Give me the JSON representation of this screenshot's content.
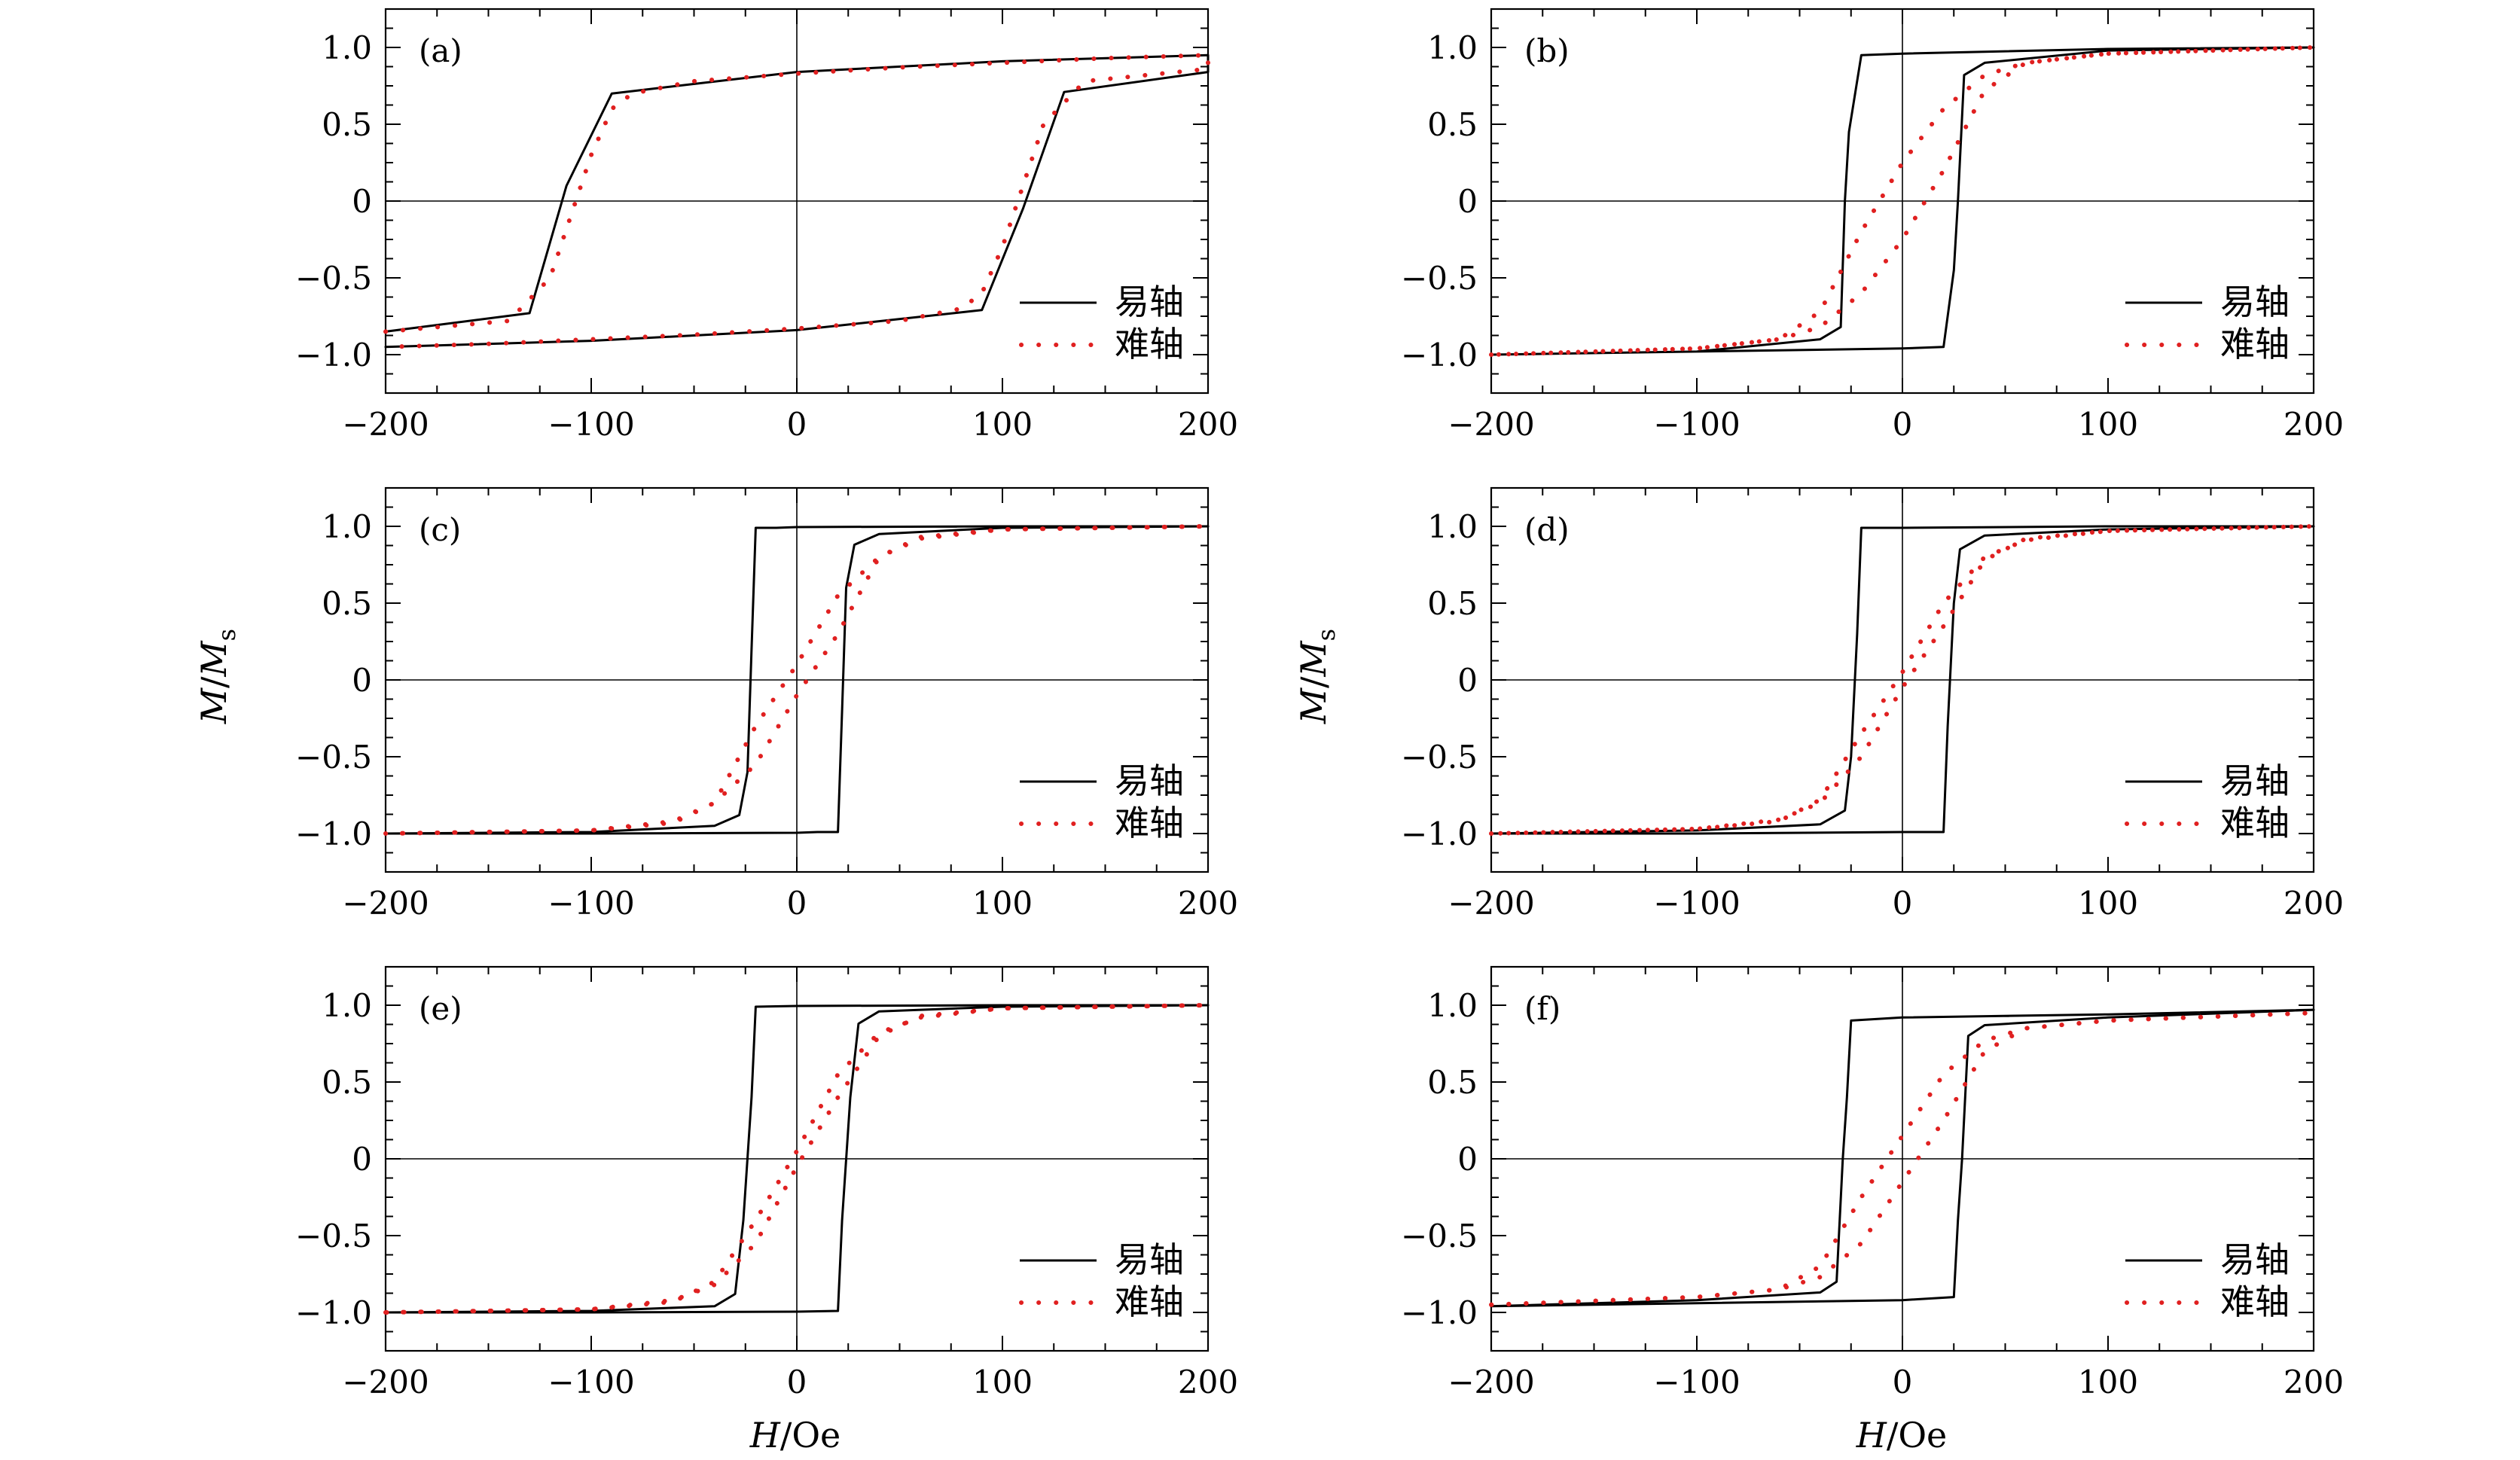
{
  "figure": {
    "ylabel": "M/Ms",
    "ylabel_parts": {
      "m": "M",
      "slash": "/",
      "m2": "M",
      "sub": "s"
    },
    "xlabel_parts": {
      "h": "H",
      "unit": "/Oe"
    },
    "legend": {
      "easy": "易轴",
      "hard": "难轴"
    },
    "colors": {
      "easy": "#000000",
      "hard": "#e02020"
    }
  },
  "chart_data": [
    {
      "type": "line",
      "panel": "(a)",
      "xlim": [
        -200,
        200
      ],
      "ylim": [
        -1.25,
        1.25
      ],
      "xticks": [
        "−200",
        "−100",
        "0",
        "100",
        "200"
      ],
      "yticks": [
        "1.0",
        "0.5",
        "0",
        "−0.5",
        "−1.0"
      ],
      "legend_position": "bottom-right",
      "series": [
        {
          "name": "易轴",
          "style": "solid",
          "x": [
            -200,
            -130,
            -112,
            -90,
            0,
            100,
            200,
            200,
            130,
            110,
            90,
            0,
            -100,
            -200
          ],
          "y": [
            -0.85,
            -0.73,
            0.1,
            0.7,
            0.84,
            0.91,
            0.95,
            0.84,
            0.71,
            -0.05,
            -0.71,
            -0.84,
            -0.91,
            -0.95
          ]
        },
        {
          "name": "难轴",
          "style": "dotted",
          "x": [
            -200,
            -140,
            -120,
            -110,
            -100,
            -90,
            -80,
            -50,
            0,
            50,
            100,
            150,
            200,
            200,
            140,
            120,
            110,
            100,
            90,
            80,
            50,
            0,
            -50,
            -100,
            -150,
            -200
          ],
          "y": [
            -0.85,
            -0.78,
            -0.5,
            -0.1,
            0.3,
            0.6,
            0.7,
            0.78,
            0.83,
            0.87,
            0.9,
            0.93,
            0.95,
            0.86,
            0.78,
            0.5,
            0.1,
            -0.3,
            -0.6,
            -0.7,
            -0.78,
            -0.83,
            -0.87,
            -0.9,
            -0.93,
            -0.95
          ]
        }
      ]
    },
    {
      "type": "line",
      "panel": "(b)",
      "xlim": [
        -200,
        200
      ],
      "ylim": [
        -1.25,
        1.25
      ],
      "xticks": [
        "−200",
        "−100",
        "0",
        "100",
        "200"
      ],
      "yticks": [
        "1.0",
        "0.5",
        "0",
        "−0.5",
        "−1.0"
      ],
      "legend_position": "bottom-right",
      "series": [
        {
          "name": "易轴",
          "style": "solid",
          "x": [
            -200,
            -100,
            -40,
            -30,
            -28,
            -26,
            -20,
            0,
            100,
            200,
            200,
            100,
            40,
            30,
            27,
            25,
            20,
            0,
            -100,
            -200
          ],
          "y": [
            -1.0,
            -0.98,
            -0.9,
            -0.82,
            0.0,
            0.45,
            0.95,
            0.96,
            0.99,
            1.0,
            1.0,
            0.98,
            0.9,
            0.82,
            0.0,
            -0.45,
            -0.95,
            -0.96,
            -0.98,
            -1.0
          ]
        },
        {
          "name": "难轴",
          "style": "dotted",
          "x": [
            -200,
            -100,
            -60,
            -40,
            -20,
            0,
            20,
            40,
            60,
            100,
            200,
            200,
            100,
            60,
            40,
            20,
            0,
            -20,
            -40,
            -60,
            -100,
            -200
          ],
          "y": [
            -1.0,
            -0.96,
            -0.9,
            -0.72,
            -0.2,
            0.25,
            0.6,
            0.82,
            0.9,
            0.96,
            1.0,
            1.0,
            0.96,
            0.9,
            0.72,
            0.2,
            -0.25,
            -0.6,
            -0.82,
            -0.9,
            -0.96,
            -1.0
          ]
        }
      ]
    },
    {
      "type": "line",
      "panel": "(c)",
      "xlim": [
        -200,
        200
      ],
      "ylim": [
        -1.25,
        1.25
      ],
      "xticks": [
        "−200",
        "−100",
        "0",
        "100",
        "200"
      ],
      "yticks": [
        "1.0",
        "0.5",
        "0",
        "−0.5",
        "−1.0"
      ],
      "legend_position": "bottom-right",
      "series": [
        {
          "name": "易轴",
          "style": "solid",
          "x": [
            -200,
            -100,
            -40,
            -28,
            -24,
            -22,
            -20,
            -10,
            0,
            100,
            200,
            200,
            100,
            40,
            28,
            24,
            22,
            20,
            10,
            0,
            -100,
            -200
          ],
          "y": [
            -1.0,
            -0.99,
            -0.95,
            -0.88,
            -0.6,
            0.2,
            0.99,
            0.99,
            0.995,
            1.0,
            1.0,
            1.0,
            0.99,
            0.95,
            0.88,
            0.6,
            -0.2,
            -0.99,
            -0.99,
            -0.995,
            -1.0,
            -1.0
          ]
        },
        {
          "name": "难轴",
          "style": "dotted",
          "x": [
            -200,
            -100,
            -60,
            -40,
            -20,
            0,
            20,
            40,
            60,
            100,
            200,
            200,
            100,
            60,
            40,
            20,
            0,
            -20,
            -40,
            -60,
            -100,
            -200
          ],
          "y": [
            -1.0,
            -0.98,
            -0.93,
            -0.8,
            -0.3,
            0.1,
            0.55,
            0.8,
            0.92,
            0.98,
            1.0,
            1.0,
            0.98,
            0.93,
            0.8,
            0.3,
            -0.1,
            -0.55,
            -0.8,
            -0.92,
            -0.98,
            -1.0
          ]
        }
      ]
    },
    {
      "type": "line",
      "panel": "(d)",
      "xlim": [
        -200,
        200
      ],
      "ylim": [
        -1.25,
        1.25
      ],
      "xticks": [
        "−200",
        "−100",
        "0",
        "100",
        "200"
      ],
      "yticks": [
        "1.0",
        "0.5",
        "0",
        "−0.5",
        "−1.0"
      ],
      "legend_position": "bottom-right",
      "series": [
        {
          "name": "易轴",
          "style": "solid",
          "x": [
            -200,
            -100,
            -40,
            -28,
            -25,
            -22,
            -20,
            0,
            100,
            200,
            200,
            100,
            40,
            28,
            25,
            22,
            20,
            0,
            -100,
            -200
          ],
          "y": [
            -1.0,
            -0.98,
            -0.94,
            -0.85,
            -0.5,
            0.3,
            0.99,
            0.99,
            1.0,
            1.0,
            1.0,
            0.98,
            0.94,
            0.85,
            0.5,
            -0.3,
            -0.99,
            -0.99,
            -1.0,
            -1.0
          ]
        },
        {
          "name": "难轴",
          "style": "dotted",
          "x": [
            -200,
            -100,
            -60,
            -40,
            -20,
            0,
            20,
            40,
            60,
            100,
            200,
            200,
            100,
            60,
            40,
            20,
            0,
            -20,
            -40,
            -60,
            -100,
            -200
          ],
          "y": [
            -1.0,
            -0.97,
            -0.92,
            -0.78,
            -0.35,
            0.05,
            0.5,
            0.8,
            0.91,
            0.97,
            1.0,
            1.0,
            0.97,
            0.92,
            0.78,
            0.35,
            -0.05,
            -0.5,
            -0.8,
            -0.91,
            -0.97,
            -1.0
          ]
        }
      ]
    },
    {
      "type": "line",
      "panel": "(e)",
      "xlim": [
        -200,
        200
      ],
      "ylim": [
        -1.25,
        1.25
      ],
      "xticks": [
        "−200",
        "−100",
        "0",
        "100",
        "200"
      ],
      "yticks": [
        "1.0",
        "0.5",
        "0",
        "−0.5",
        "−1.0"
      ],
      "legend_position": "bottom-right",
      "series": [
        {
          "name": "易轴",
          "style": "solid",
          "x": [
            -200,
            -100,
            -40,
            -30,
            -26,
            -22,
            -20,
            0,
            100,
            200,
            200,
            100,
            40,
            30,
            26,
            22,
            20,
            0,
            -100,
            -200
          ],
          "y": [
            -1.0,
            -0.99,
            -0.96,
            -0.88,
            -0.4,
            0.4,
            0.99,
            0.995,
            1.0,
            1.0,
            1.0,
            0.99,
            0.96,
            0.88,
            0.4,
            -0.4,
            -0.99,
            -0.995,
            -1.0,
            -1.0
          ]
        },
        {
          "name": "难轴",
          "style": "dotted",
          "x": [
            -200,
            -100,
            -60,
            -40,
            -20,
            0,
            20,
            40,
            60,
            100,
            200,
            200,
            100,
            60,
            40,
            20,
            0,
            -20,
            -40,
            -60,
            -100,
            -200
          ],
          "y": [
            -1.0,
            -0.98,
            -0.93,
            -0.8,
            -0.4,
            0.05,
            0.55,
            0.82,
            0.92,
            0.98,
            1.0,
            1.0,
            0.98,
            0.93,
            0.8,
            0.4,
            -0.05,
            -0.55,
            -0.82,
            -0.92,
            -0.98,
            -1.0
          ]
        }
      ]
    },
    {
      "type": "line",
      "panel": "(f)",
      "xlim": [
        -200,
        200
      ],
      "ylim": [
        -1.25,
        1.25
      ],
      "xticks": [
        "−200",
        "−100",
        "0",
        "100",
        "200"
      ],
      "yticks": [
        "1.0",
        "0.5",
        "0",
        "−0.5",
        "−1.0"
      ],
      "legend_position": "bottom-right",
      "series": [
        {
          "name": "易轴",
          "style": "solid",
          "x": [
            -200,
            -100,
            -40,
            -32,
            -29,
            -27,
            -25,
            0,
            100,
            200,
            200,
            100,
            40,
            32,
            29,
            27,
            25,
            0,
            -100,
            -200
          ],
          "y": [
            -0.96,
            -0.92,
            -0.87,
            -0.8,
            0.0,
            0.4,
            0.9,
            0.92,
            0.94,
            0.97,
            0.97,
            0.92,
            0.87,
            0.8,
            0.0,
            -0.4,
            -0.9,
            -0.92,
            -0.94,
            -0.96
          ]
        },
        {
          "name": "难轴",
          "style": "dotted",
          "x": [
            -200,
            -100,
            -60,
            -40,
            -20,
            0,
            20,
            40,
            60,
            100,
            200,
            200,
            100,
            60,
            40,
            20,
            0,
            -20,
            -40,
            -60,
            -100,
            -200
          ],
          "y": [
            -0.95,
            -0.9,
            -0.85,
            -0.7,
            -0.25,
            0.15,
            0.55,
            0.77,
            0.85,
            0.9,
            0.95,
            0.95,
            0.9,
            0.85,
            0.7,
            0.25,
            -0.15,
            -0.55,
            -0.77,
            -0.85,
            -0.9,
            -0.95
          ]
        }
      ]
    }
  ]
}
